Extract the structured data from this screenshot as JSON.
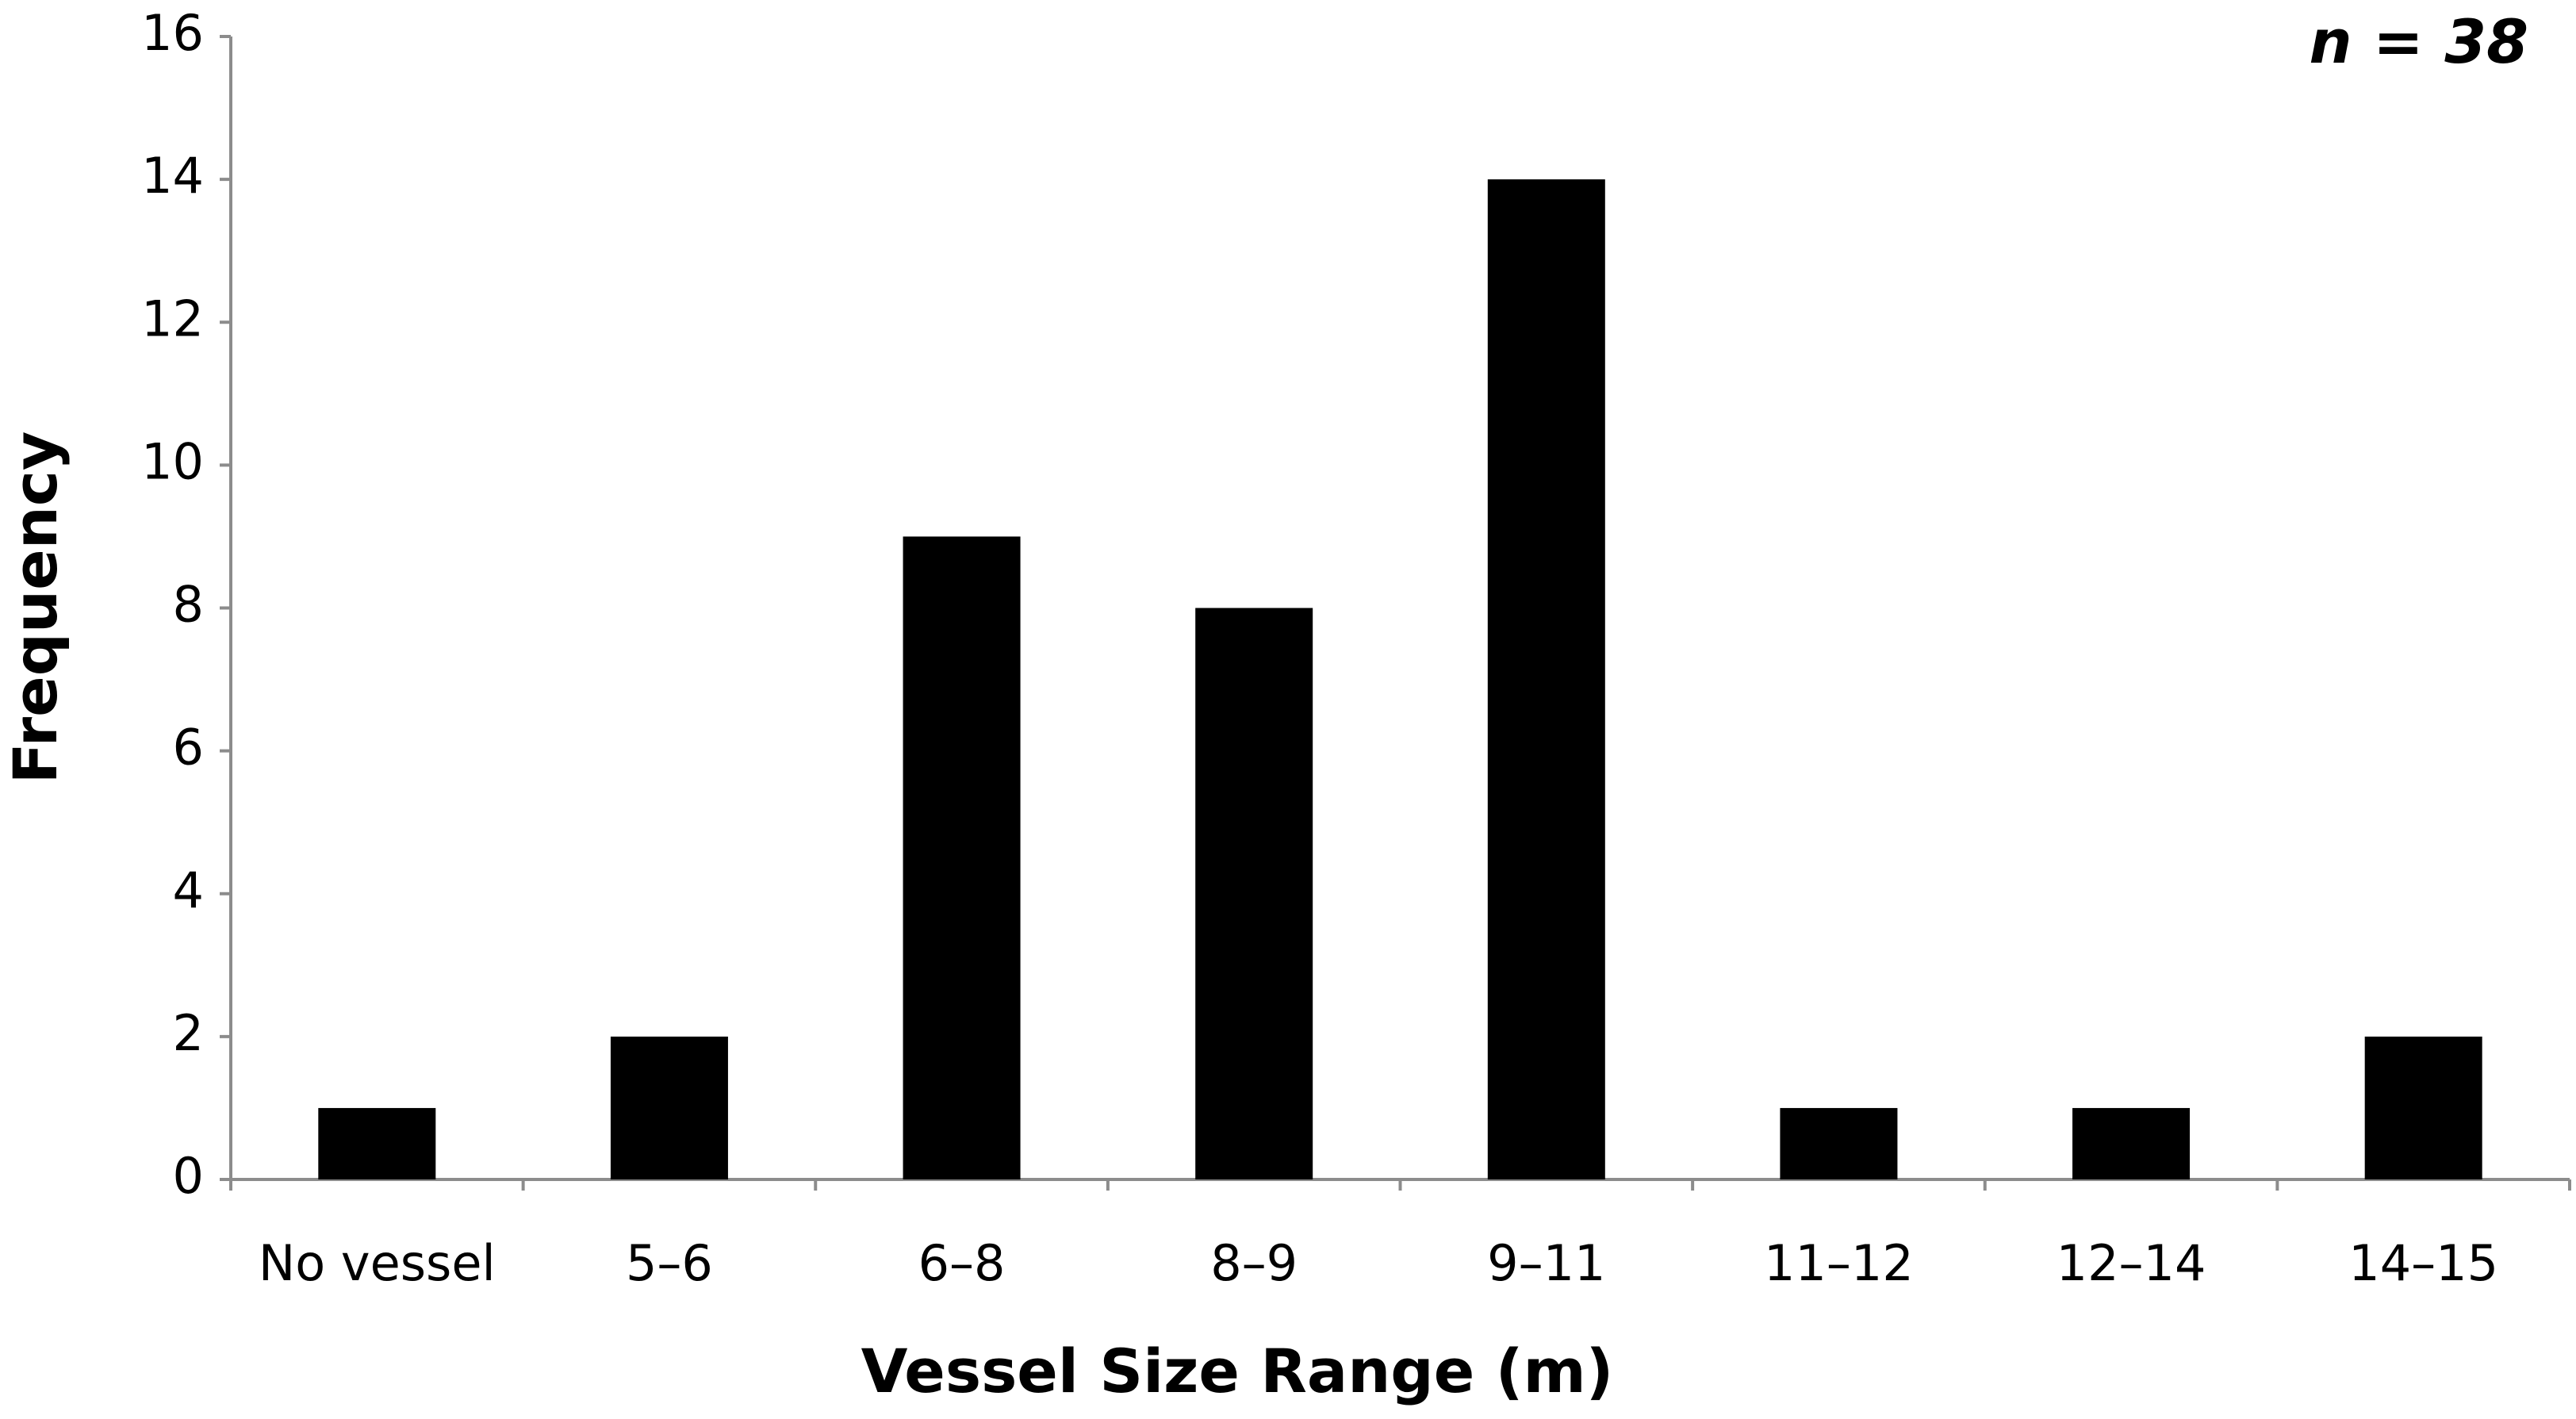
{
  "chart_data": {
    "type": "bar",
    "x_label": "Vessel Size Range (m)",
    "y_label": "Frequency",
    "annotation": "n = 38",
    "categories": [
      "No vessel",
      "5–6",
      "6–8",
      "8–9",
      "9–11",
      "11–12",
      "12–14",
      "14–15"
    ],
    "values": [
      1,
      2,
      9,
      8,
      14,
      1,
      1,
      2
    ],
    "color": "#000000",
    "ylim": [
      0,
      16
    ],
    "yticks": [
      0,
      2,
      4,
      6,
      8,
      10,
      12,
      14,
      16
    ],
    "grid": false
  }
}
